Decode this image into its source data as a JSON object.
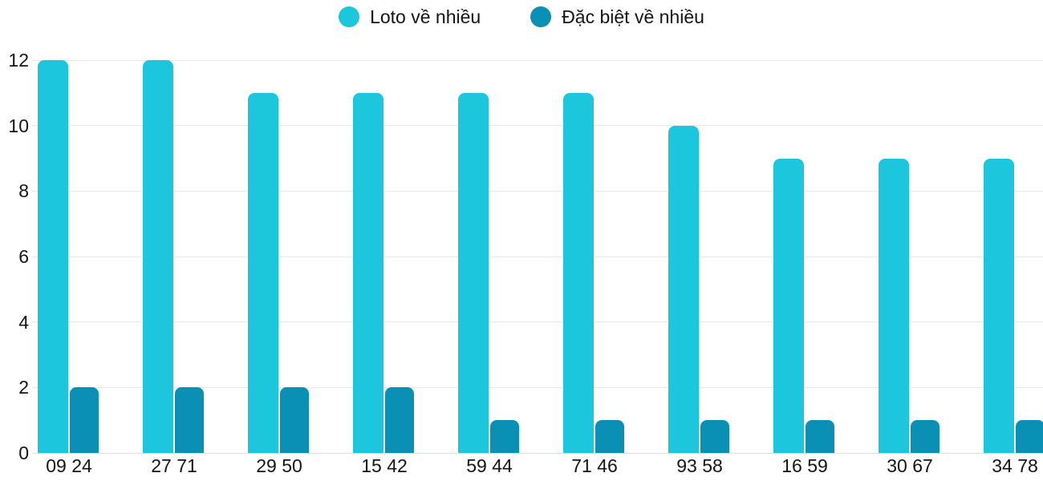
{
  "legend": {
    "items": [
      {
        "label": "Loto về nhiều",
        "color": "#1CC6DC"
      },
      {
        "label": "Đặc biệt về nhiều",
        "color": "#0A90B5"
      }
    ]
  },
  "chart_data": {
    "type": "bar",
    "title": "",
    "xlabel": "",
    "ylabel": "",
    "categories": [
      "09 24",
      "27 71",
      "29 50",
      "15 42",
      "59 44",
      "71 46",
      "93 58",
      "16 59",
      "30 67",
      "34 78"
    ],
    "series": [
      {
        "name": "Loto về nhiều",
        "color": "#1CC6DC",
        "values": [
          12,
          12,
          11,
          11,
          11,
          11,
          10,
          9,
          9,
          9
        ]
      },
      {
        "name": "Đặc biệt về nhiều",
        "color": "#0A90B5",
        "values": [
          2,
          2,
          2,
          2,
          1,
          1,
          1,
          1,
          1,
          1
        ]
      }
    ],
    "ylim": [
      0,
      12
    ],
    "yticks": [
      0,
      2,
      4,
      6,
      8,
      10,
      12
    ],
    "grid": true,
    "gridline_color": "#e8e8e8",
    "background_color": "#ffffff",
    "text_color": "#141414",
    "legend_position": "top-center"
  }
}
